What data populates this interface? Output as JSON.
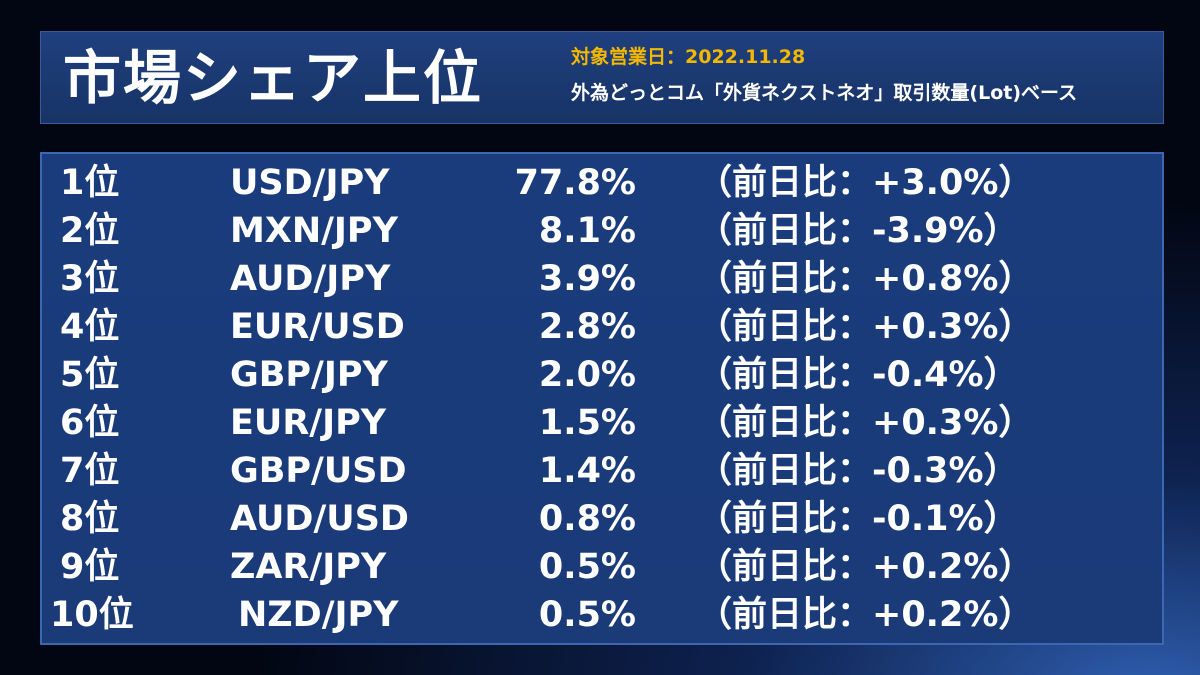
{
  "header": {
    "title": "市場シェア上位",
    "date_line": "対象営業日：2022.11.28",
    "basis_line": "外為どっとコム「外貨ネクストネオ」取引数量(Lot)ベース"
  },
  "rankings": [
    {
      "rank": "1位",
      "pair": "USD/JPY",
      "share": "77.8%",
      "change": "（前日比：+3.0%）"
    },
    {
      "rank": "2位",
      "pair": "MXN/JPY",
      "share": "8.1%",
      "change": "（前日比：-3.9%）"
    },
    {
      "rank": "3位",
      "pair": "AUD/JPY",
      "share": "3.9%",
      "change": "（前日比：+0.8%）"
    },
    {
      "rank": "4位",
      "pair": "EUR/USD",
      "share": "2.8%",
      "change": "（前日比：+0.3%）"
    },
    {
      "rank": "5位",
      "pair": "GBP/JPY",
      "share": "2.0%",
      "change": "（前日比：-0.4%）"
    },
    {
      "rank": "6位",
      "pair": "EUR/JPY",
      "share": "1.5%",
      "change": "（前日比：+0.3%）"
    },
    {
      "rank": "7位",
      "pair": "GBP/USD",
      "share": "1.4%",
      "change": "（前日比：-0.3%）"
    },
    {
      "rank": "8位",
      "pair": "AUD/USD",
      "share": "0.8%",
      "change": "（前日比：-0.1%）"
    },
    {
      "rank": "9位",
      "pair": "ZAR/JPY",
      "share": "0.5%",
      "change": "（前日比：+0.2%）"
    },
    {
      "rank": "10位",
      "pair": "NZD/JPY",
      "share": "0.5%",
      "change": "（前日比：+0.2%）"
    }
  ],
  "colors": {
    "accent": "#f5b800",
    "panel": "#1a3c7c",
    "text": "#ffffff"
  }
}
